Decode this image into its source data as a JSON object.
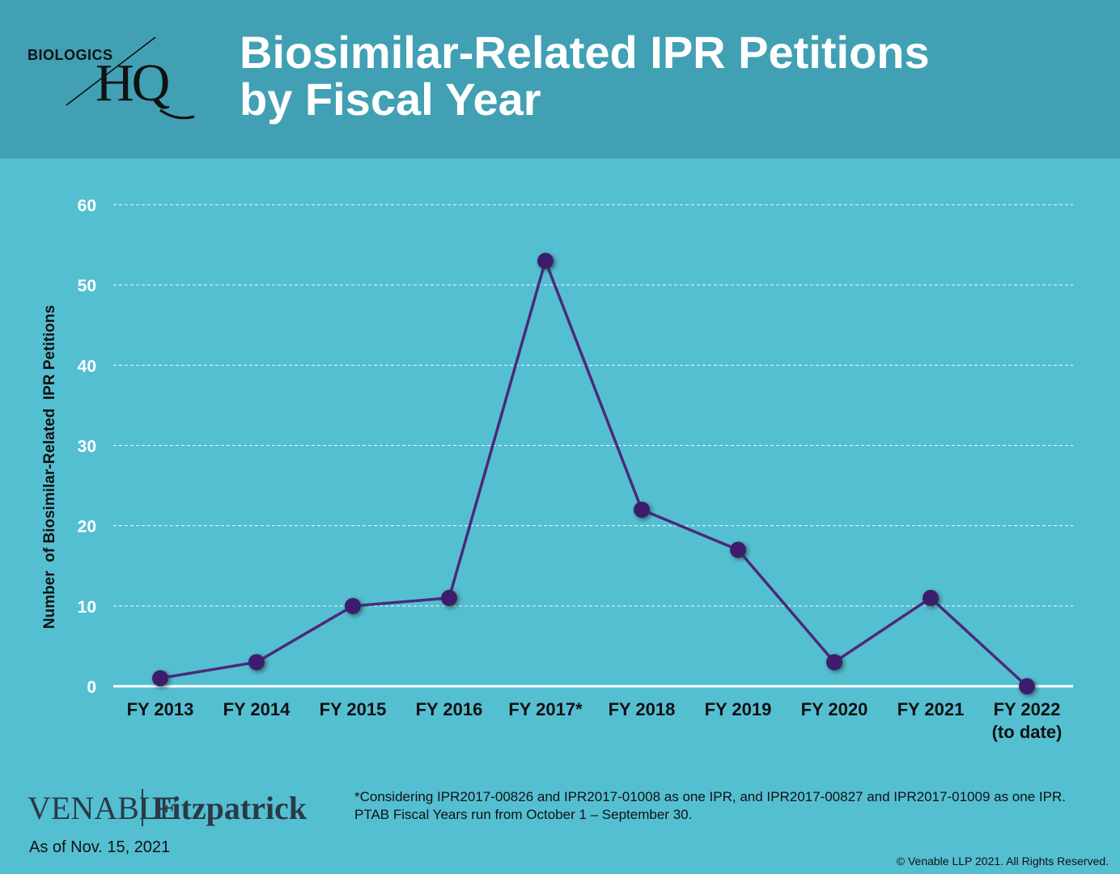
{
  "header": {
    "logo_small": "BIOLOGICS",
    "logo_big": "HQ",
    "title_line1": "Biosimilar-Related IPR Petitions",
    "title_line2": "by Fiscal Year"
  },
  "colors": {
    "header_bg": "#41a0b4",
    "page_bg": "#55bfd2",
    "series": "#4b2a7a",
    "point": "#3e1f6e",
    "grid": "#ffffff"
  },
  "chart_data": {
    "type": "line",
    "title": "Biosimilar-Related IPR Petitions by Fiscal Year",
    "ylabel": "Number  of Biosimilar-Related  IPR Petitions",
    "xlabel": "",
    "categories": [
      "FY 2013",
      "FY 2014",
      "FY 2015",
      "FY 2016",
      "FY 2017*",
      "FY 2018",
      "FY 2019",
      "FY 2020",
      "FY 2021",
      "FY 2022\n(to date)"
    ],
    "series": [
      {
        "values": [
          1,
          3,
          10,
          11,
          53,
          22,
          17,
          3,
          11,
          0
        ]
      }
    ],
    "ylim": [
      0,
      60
    ],
    "yticks": [
      0,
      10,
      20,
      30,
      40,
      50,
      60
    ],
    "grid": true,
    "legend": "none"
  },
  "footer": {
    "venable": "VENABLE",
    "fitzpatrick": "Fitzpatrick",
    "as_of": "As of Nov. 15, 2021",
    "note_line1": "*Considering IPR2017-00826 and IPR2017-01008 as one IPR, and IPR2017-00827 and IPR2017-01009 as one IPR.",
    "note_line2": "PTAB Fiscal Years run from October 1 – September 30.",
    "copyright": "© Venable LLP 2021. All Rights Reserved."
  }
}
